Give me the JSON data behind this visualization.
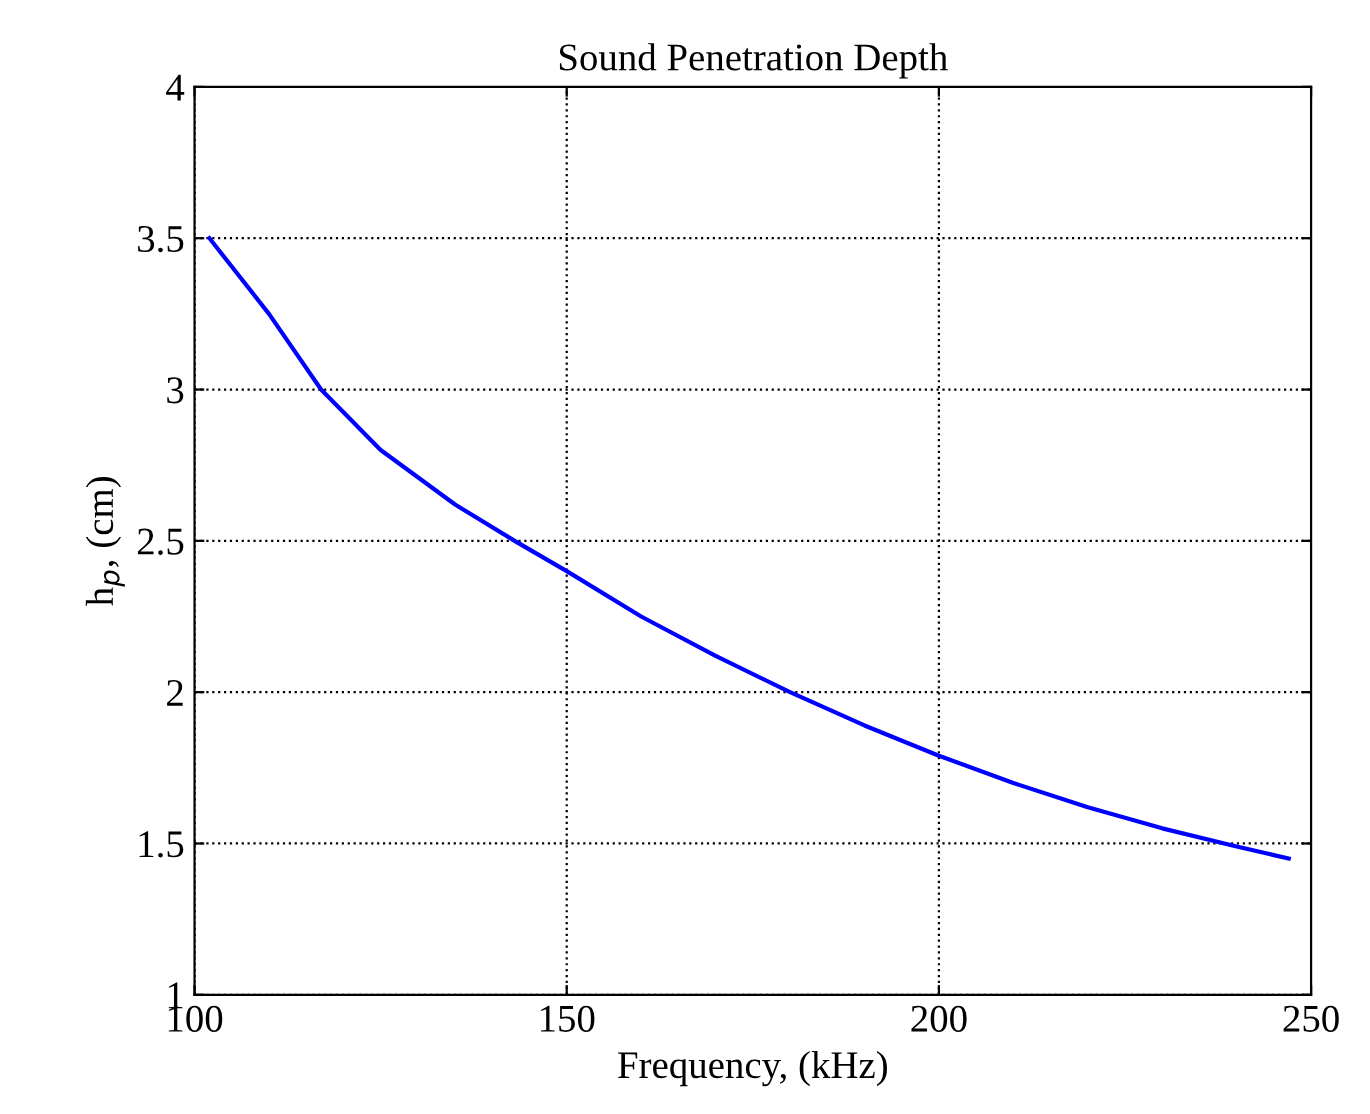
{
  "chart_data": {
    "type": "line",
    "title": "Sound Penetration Depth",
    "xlabel": "Frequency, (kHz)",
    "ylabel": "h$_{p}$, (cm)",
    "x": [
      102,
      110,
      117,
      125,
      135,
      143,
      150,
      160,
      170,
      180,
      190,
      200,
      210,
      220,
      230,
      240,
      247
    ],
    "series": [
      {
        "color": "#0000ff",
        "values": [
          3.5,
          3.25,
          3.0,
          2.8,
          2.62,
          2.5,
          2.4,
          2.25,
          2.12,
          2.0,
          1.89,
          1.79,
          1.7,
          1.62,
          1.55,
          1.49,
          1.45
        ]
      }
    ],
    "xlim": [
      100,
      250
    ],
    "xticks": [
      100,
      150,
      200,
      250
    ],
    "ylim": [
      1,
      4
    ],
    "yticks": [
      1,
      1.5,
      2,
      2.5,
      3,
      3.5,
      4
    ],
    "grid": true,
    "line_style": "solid",
    "marker": "none",
    "legend": false
  }
}
